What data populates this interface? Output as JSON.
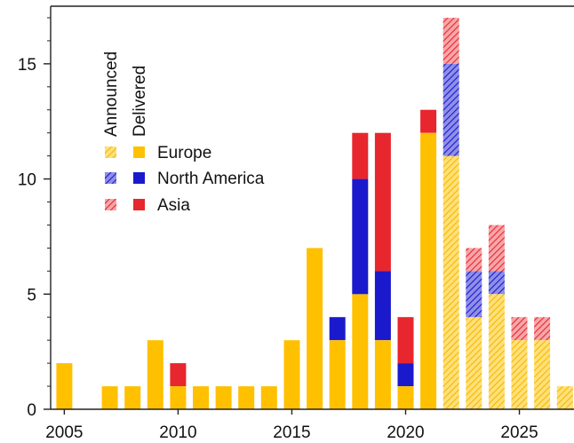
{
  "chart_data": {
    "type": "bar",
    "stacked": true,
    "xlim": [
      2004.4,
      2027.4
    ],
    "ylim": [
      0,
      17.5
    ],
    "xticks": [
      2005,
      2010,
      2015,
      2020,
      2025
    ],
    "yticks": [
      0,
      5,
      10,
      15
    ],
    "grid": false,
    "legend": {
      "placement": "top-left",
      "status_headers": [
        "Announced",
        "Delivered"
      ],
      "entries": [
        "Europe",
        "North America",
        "Asia"
      ]
    },
    "colors": {
      "Europe": "#ffc000",
      "North America": "#1a1acc",
      "Asia": "#e8262d"
    },
    "series": [
      {
        "name": "Europe",
        "delivered": [
          [
            2005,
            2
          ],
          [
            2007,
            1
          ],
          [
            2008,
            1
          ],
          [
            2009,
            3
          ],
          [
            2010,
            1
          ],
          [
            2011,
            1
          ],
          [
            2012,
            1
          ],
          [
            2013,
            1
          ],
          [
            2014,
            1
          ],
          [
            2015,
            3
          ],
          [
            2016,
            7
          ],
          [
            2017,
            3
          ],
          [
            2018,
            5
          ],
          [
            2019,
            3
          ],
          [
            2020,
            1
          ],
          [
            2021,
            12
          ]
        ],
        "announced": [
          [
            2022,
            11
          ],
          [
            2023,
            4
          ],
          [
            2024,
            5
          ],
          [
            2025,
            3
          ],
          [
            2026,
            3
          ],
          [
            2027,
            1
          ]
        ]
      },
      {
        "name": "North America",
        "delivered": [
          [
            2017,
            1
          ],
          [
            2018,
            5
          ],
          [
            2019,
            3
          ],
          [
            2020,
            1
          ]
        ],
        "announced": [
          [
            2022,
            4
          ],
          [
            2023,
            2
          ],
          [
            2024,
            1
          ]
        ]
      },
      {
        "name": "Asia",
        "delivered": [
          [
            2010,
            1
          ],
          [
            2018,
            2
          ],
          [
            2019,
            6
          ],
          [
            2020,
            2
          ],
          [
            2021,
            1
          ]
        ],
        "announced": [
          [
            2022,
            2
          ],
          [
            2023,
            1
          ],
          [
            2024,
            2
          ],
          [
            2025,
            1
          ],
          [
            2026,
            1
          ]
        ]
      }
    ]
  }
}
